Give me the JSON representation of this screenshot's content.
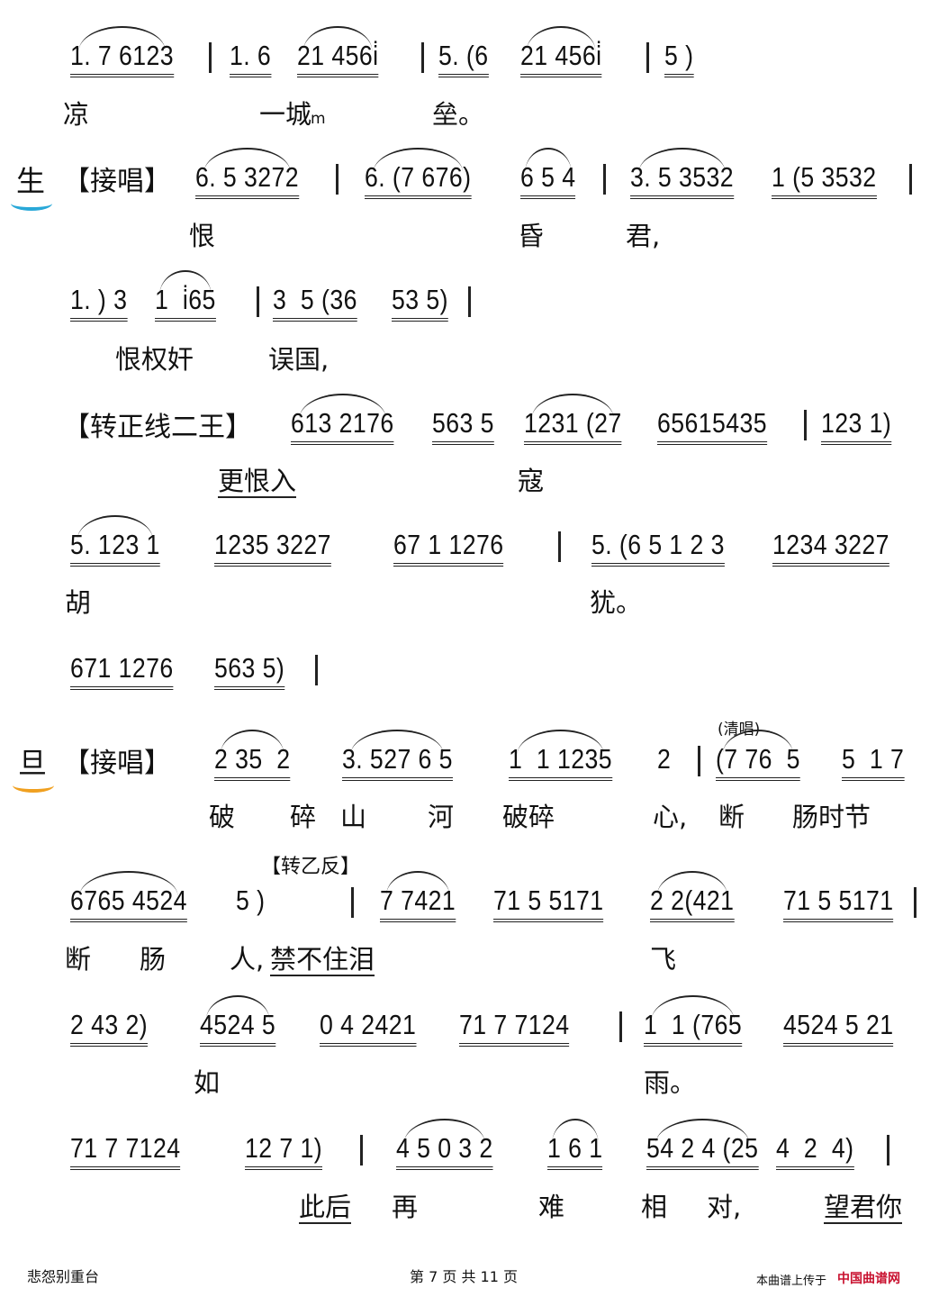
{
  "score": {
    "lines": [
      {
        "notes": [
          "1. 7 6123",
          "1. 6",
          "21 456i̇",
          "5. (6",
          "21 456i̇",
          "5 )"
        ],
        "lyrics": [
          "凉",
          "一城",
          "m",
          "垒。"
        ]
      },
      {
        "role": "生",
        "mark": "【接唱】",
        "notes": [
          "6. 5 3272",
          "6. (7 676)",
          "6 5 4",
          "3. 5 3532",
          "1 (5 3532"
        ],
        "lyrics": [
          "恨",
          "昏",
          "君,"
        ]
      },
      {
        "notes": [
          "1. ) 3",
          "1  i̇65",
          "3  5 (36",
          "53 5)"
        ],
        "lyrics": [
          "恨权奸",
          "误国,"
        ]
      },
      {
        "mark": "【转正线二王】",
        "notes": [
          "613 2176",
          "563 5",
          "1231 (27",
          "65615435",
          "123 1)"
        ],
        "lyrics": [
          "更恨入",
          "寇"
        ]
      },
      {
        "notes": [
          "5. 123 1",
          "1235 3227",
          "67 1 1276",
          "5. (6 5 1 2 3",
          "1234 3227"
        ],
        "lyrics": [
          "胡",
          "犹。"
        ]
      },
      {
        "notes": [
          "671 1276",
          "563 5)"
        ],
        "lyrics": []
      },
      {
        "role": "旦",
        "mark": "【接唱】",
        "annotation": "(清唱)",
        "notes": [
          "2 35  2",
          "3. 527 6 5",
          "1  1 1235",
          "2",
          "(7 76  5",
          "5  1 7"
        ],
        "lyrics": [
          "破",
          "碎",
          "山",
          "河",
          "破碎",
          "心,",
          "断",
          "肠时节"
        ]
      },
      {
        "annotation": "【转乙反】",
        "notes": [
          "6765 4524",
          "5 )",
          "7 7421",
          "71 5 5171",
          "2 2(421",
          "71 5 5171"
        ],
        "lyrics": [
          "断",
          "肠",
          "人,",
          "禁不住泪",
          "飞"
        ]
      },
      {
        "notes": [
          "2 43 2)",
          "4524 5",
          "0 4 2421",
          "71 7 7124",
          "1  1 (765",
          "4524 5 21"
        ],
        "lyrics": [
          "如",
          "雨。"
        ]
      },
      {
        "notes": [
          "71 7 7124",
          "12 7 1)",
          "4 5 0 3 2",
          "1 6 1",
          "54 2 4 (25",
          "4  2  4)"
        ],
        "lyrics": [
          "此后",
          "再",
          "难",
          "相",
          "对,",
          "望君你"
        ]
      }
    ]
  },
  "footer": {
    "title": "悲怨别重台",
    "page": "第 7 页 共 11 页",
    "upload": "本曲谱上传于",
    "site": "中国曲谱网"
  },
  "colors": {
    "sheng_mark": "#29a8d8",
    "dan_mark": "#f0a020",
    "site": "#c8102e"
  }
}
